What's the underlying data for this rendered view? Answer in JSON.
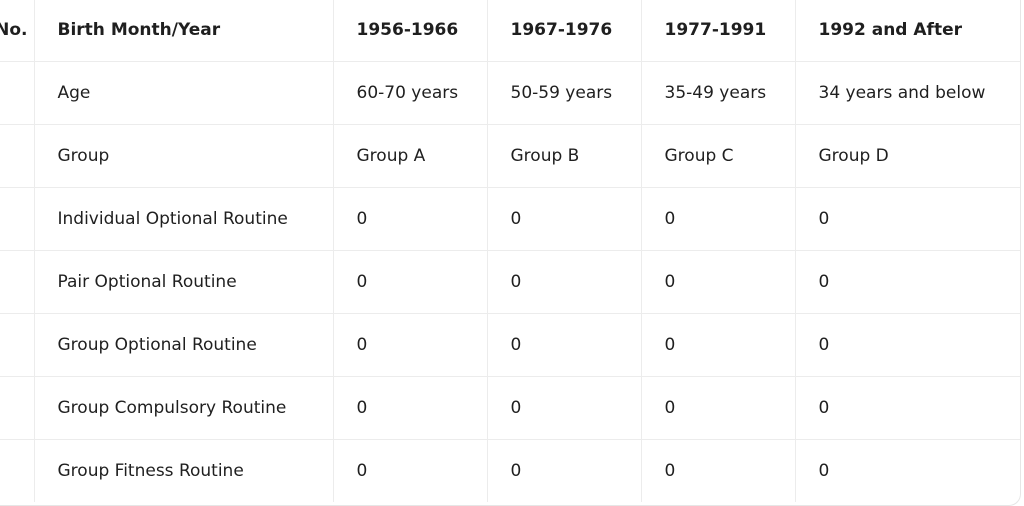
{
  "table": {
    "headers": [
      "No.",
      "Birth Month/Year",
      "1956-1966",
      "1967-1976",
      "1977-1991",
      "1992 and After"
    ],
    "rows": [
      [
        "",
        "Age",
        "60-70 years",
        "50-59 years",
        "35-49 years",
        "34 years and below"
      ],
      [
        "",
        "Group",
        "Group A",
        "Group B",
        "Group C",
        "Group D"
      ],
      [
        "",
        "Individual Optional Routine",
        "0",
        "0",
        "0",
        "0"
      ],
      [
        "",
        "Pair Optional Routine",
        "0",
        "0",
        "0",
        "0"
      ],
      [
        "",
        "Group Optional Routine",
        "0",
        "0",
        "0",
        "0"
      ],
      [
        "",
        "Group Compulsory Routine",
        "0",
        "0",
        "0",
        "0"
      ],
      [
        "",
        "Group Fitness Routine",
        "0",
        "0",
        "0",
        "0"
      ]
    ]
  }
}
